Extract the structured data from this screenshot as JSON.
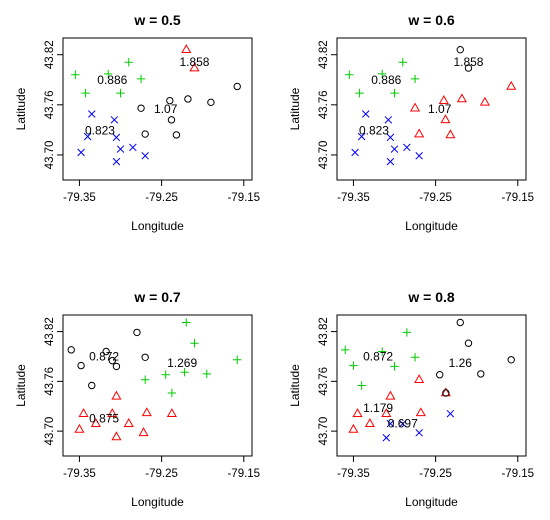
{
  "chart_data": [
    {
      "type": "scatter",
      "title": "w = 0.5",
      "xlabel": "Longitude",
      "ylabel": "Latitude",
      "xlim": [
        -79.37,
        -79.14
      ],
      "ylim": [
        43.67,
        43.84
      ],
      "xticks": [
        "-79.35",
        "-79.25",
        "-79.15"
      ],
      "yticks": [
        "43.70",
        "43.76",
        "43.82"
      ],
      "grid": false,
      "series": [
        {
          "color": "#00cc00",
          "marker": "plus",
          "x": [
            -79.355,
            -79.3425,
            -79.315,
            -79.29,
            -79.275,
            -79.3
          ],
          "y": [
            43.796,
            43.774,
            43.797,
            43.811,
            43.791,
            43.774
          ]
        },
        {
          "color": "#0000ff",
          "marker": "x",
          "x": [
            -79.335,
            -79.34,
            -79.348,
            -79.305,
            -79.3,
            -79.285,
            -79.305,
            -79.3075,
            -79.27
          ],
          "y": [
            43.749,
            43.722,
            43.703,
            43.721,
            43.707,
            43.709,
            43.692,
            43.742,
            43.699
          ]
        },
        {
          "color": "#ff0000",
          "marker": "triangle",
          "x": [
            -79.22,
            -79.21
          ],
          "y": [
            43.826,
            43.804
          ]
        },
        {
          "color": "#000000",
          "marker": "circle",
          "x": [
            -79.275,
            -79.27,
            -79.24,
            -79.238,
            -79.232,
            -79.218,
            -79.19,
            -79.158
          ],
          "y": [
            43.756,
            43.725,
            43.765,
            43.742,
            43.724,
            43.767,
            43.763,
            43.782
          ]
        }
      ],
      "annotations": [
        {
          "text": "1.858",
          "x": -79.21,
          "y": 43.811
        },
        {
          "text": "0.886",
          "x": -79.31,
          "y": 43.79
        },
        {
          "text": "1.07",
          "x": -79.245,
          "y": 43.755
        },
        {
          "text": "0.823",
          "x": -79.325,
          "y": 43.729
        }
      ]
    },
    {
      "type": "scatter",
      "title": "w = 0.6",
      "xlabel": "Longitude",
      "ylabel": "Latitude",
      "xlim": [
        -79.37,
        -79.14
      ],
      "ylim": [
        43.67,
        43.84
      ],
      "xticks": [
        "-79.35",
        "-79.25",
        "-79.15"
      ],
      "yticks": [
        "43.70",
        "43.76",
        "43.82"
      ],
      "grid": false,
      "series": [
        {
          "color": "#00cc00",
          "marker": "plus",
          "x": [
            -79.355,
            -79.3425,
            -79.315,
            -79.29,
            -79.275,
            -79.3
          ],
          "y": [
            43.796,
            43.774,
            43.797,
            43.811,
            43.791,
            43.774
          ]
        },
        {
          "color": "#0000ff",
          "marker": "x",
          "x": [
            -79.335,
            -79.34,
            -79.348,
            -79.305,
            -79.3,
            -79.285,
            -79.305,
            -79.3075,
            -79.27
          ],
          "y": [
            43.749,
            43.722,
            43.703,
            43.721,
            43.707,
            43.709,
            43.692,
            43.742,
            43.699
          ]
        },
        {
          "color": "#ff0000",
          "marker": "triangle",
          "x": [
            -79.275,
            -79.27,
            -79.24,
            -79.238,
            -79.232,
            -79.218,
            -79.19,
            -79.158
          ],
          "y": [
            43.756,
            43.725,
            43.765,
            43.742,
            43.724,
            43.767,
            43.763,
            43.782
          ]
        },
        {
          "color": "#000000",
          "marker": "circle",
          "x": [
            -79.22,
            -79.21
          ],
          "y": [
            43.826,
            43.804
          ]
        }
      ],
      "annotations": [
        {
          "text": "1.858",
          "x": -79.21,
          "y": 43.811
        },
        {
          "text": "0.886",
          "x": -79.31,
          "y": 43.79
        },
        {
          "text": "1.07",
          "x": -79.245,
          "y": 43.755
        },
        {
          "text": "0.823",
          "x": -79.325,
          "y": 43.729
        }
      ]
    },
    {
      "type": "scatter",
      "title": "w = 0.7",
      "xlabel": "Longitude",
      "ylabel": "Latitude",
      "xlim": [
        -79.37,
        -79.14
      ],
      "ylim": [
        43.67,
        43.84
      ],
      "xticks": [
        "-79.35",
        "-79.25",
        "-79.15"
      ],
      "yticks": [
        "43.70",
        "43.76",
        "43.82"
      ],
      "grid": false,
      "series": [
        {
          "color": "#000000",
          "marker": "circle",
          "x": [
            -79.36,
            -79.348,
            -79.3175,
            -79.31,
            -79.305,
            -79.335,
            -79.28,
            -79.27
          ],
          "y": [
            43.798,
            43.779,
            43.796,
            43.785,
            43.778,
            43.755,
            43.819,
            43.789
          ]
        },
        {
          "color": "#00cc00",
          "marker": "plus",
          "x": [
            -79.27,
            -79.245,
            -79.22,
            -79.21,
            -79.195,
            -79.158,
            -79.2375,
            -79.222
          ],
          "y": [
            43.762,
            43.768,
            43.831,
            43.806,
            43.769,
            43.786,
            43.746,
            43.771
          ]
        },
        {
          "color": "#ff0000",
          "marker": "triangle",
          "x": [
            -79.345,
            -79.35,
            -79.31,
            -79.305,
            -79.29,
            -79.268,
            -79.305,
            -79.272,
            -79.33,
            -79.2375
          ],
          "y": [
            43.721,
            43.702,
            43.721,
            43.742,
            43.709,
            43.722,
            43.693,
            43.698,
            43.709,
            43.721
          ]
        }
      ],
      "annotations": [
        {
          "text": "0.872",
          "x": -79.32,
          "y": 43.79
        },
        {
          "text": "1.269",
          "x": -79.225,
          "y": 43.782
        },
        {
          "text": "0.875",
          "x": -79.32,
          "y": 43.715
        }
      ]
    },
    {
      "type": "scatter",
      "title": "w = 0.8",
      "xlabel": "Longitude",
      "ylabel": "Latitude",
      "xlim": [
        -79.37,
        -79.14
      ],
      "ylim": [
        43.67,
        43.84
      ],
      "xticks": [
        "-79.35",
        "-79.25",
        "-79.15"
      ],
      "yticks": [
        "43.70",
        "43.76",
        "43.82"
      ],
      "grid": false,
      "series": [
        {
          "color": "#00cc00",
          "marker": "plus",
          "x": [
            -79.36,
            -79.35,
            -79.315,
            -79.285,
            -79.275,
            -79.3,
            -79.34
          ],
          "y": [
            43.798,
            43.779,
            43.796,
            43.819,
            43.789,
            43.778,
            43.755
          ]
        },
        {
          "color": "#ff0000",
          "marker": "triangle",
          "x": [
            -79.345,
            -79.35,
            -79.31,
            -79.305,
            -79.27,
            -79.268,
            -79.33,
            -79.2375
          ],
          "y": [
            43.721,
            43.702,
            43.721,
            43.742,
            43.762,
            43.722,
            43.709,
            43.746
          ]
        },
        {
          "color": "#0000ff",
          "marker": "x",
          "x": [
            -79.305,
            -79.31,
            -79.29,
            -79.27,
            -79.232
          ],
          "y": [
            43.709,
            43.692,
            43.709,
            43.698,
            43.721
          ]
        },
        {
          "color": "#000000",
          "marker": "circle",
          "x": [
            -79.245,
            -79.22,
            -79.21,
            -79.195,
            -79.158,
            -79.2375
          ],
          "y": [
            43.768,
            43.831,
            43.806,
            43.769,
            43.786,
            43.746
          ]
        }
      ],
      "annotations": [
        {
          "text": "0.872",
          "x": -79.32,
          "y": 43.79
        },
        {
          "text": "1.26",
          "x": -79.22,
          "y": 43.782
        },
        {
          "text": "1.179",
          "x": -79.32,
          "y": 43.728
        },
        {
          "text": "0.697",
          "x": -79.29,
          "y": 43.709
        }
      ]
    }
  ]
}
